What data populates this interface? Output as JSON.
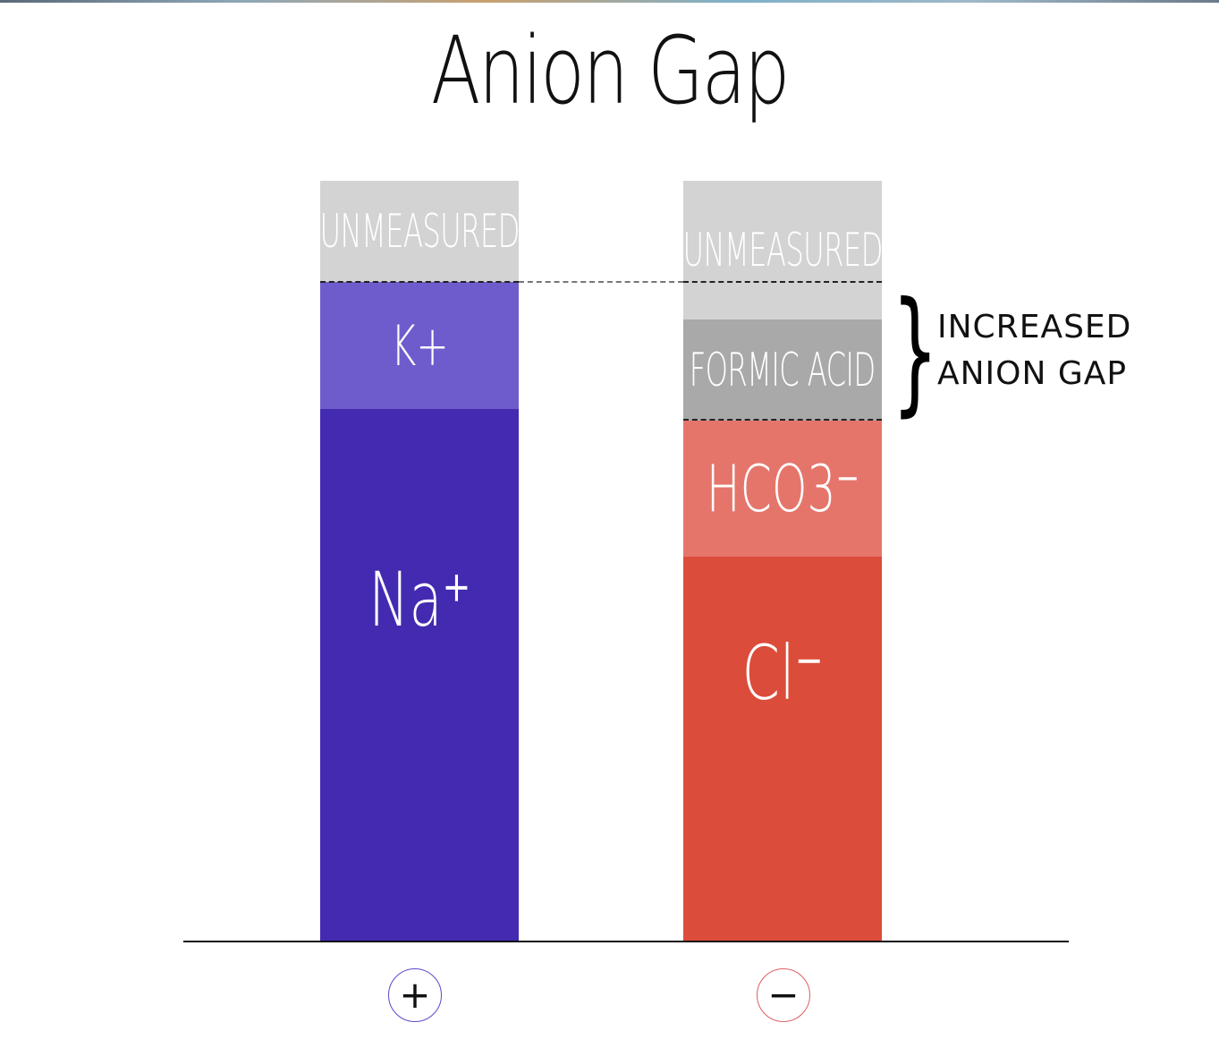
{
  "title": "Anion Gap",
  "cations": {
    "unmeasured": "UNMEASURED",
    "k": "K+",
    "na": "Na⁺",
    "sign": "+"
  },
  "anions": {
    "unmeasured": "UNMEASURED",
    "formic_acid": "FORMIC ACID",
    "hco3": "HCO3⁻",
    "cl": "Cl⁻",
    "sign": "−"
  },
  "annotation": {
    "line1": "INCREASED",
    "line2": "ANION GAP"
  },
  "colors": {
    "unmeasured_gray": "#d3d3d3",
    "formic_gray": "#a9a9a9",
    "k_purple": "#6f5ccc",
    "na_indigo": "#432ab1",
    "hco3_salmon": "#e5756b",
    "cl_red": "#db4c3a"
  }
}
